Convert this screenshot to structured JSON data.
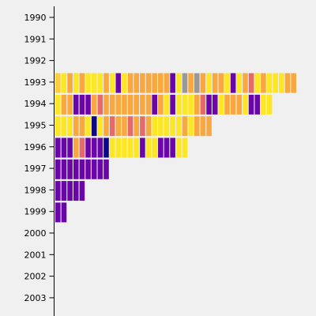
{
  "chart_data": {
    "type": "bar",
    "orientation": "horizontal",
    "description_style": "each year row is a sequence of colored cells",
    "y_categories": [
      "1990",
      "1991",
      "1992",
      "1993",
      "1994",
      "1995",
      "1996",
      "1997",
      "1998",
      "1999",
      "2000",
      "2001",
      "2002",
      "2003"
    ],
    "palette": {
      "yellow": "#fde725",
      "gold": "#fccf3a",
      "orange": "#f9a840",
      "salmon": "#e66a6a",
      "purple": "#6a05a8",
      "navy": "#0d0887",
      "gray": "#999999"
    },
    "rows": [
      {
        "year": "1990",
        "cells": []
      },
      {
        "year": "1991",
        "cells": []
      },
      {
        "year": "1992",
        "cells": [
          "gold",
          "yellow",
          "orange",
          "yellow",
          "orange",
          "yellow",
          "yellow",
          "yellow",
          "orange",
          "yellow",
          "purple",
          "yellow",
          "orange",
          "orange",
          "orange",
          "orange",
          "orange",
          "orange",
          "orange",
          "purple",
          "yellow",
          "gray",
          "orange",
          "gray",
          "orange",
          "yellow",
          "orange",
          "orange",
          "yellow",
          "purple",
          "yellow",
          "orange",
          "salmon",
          "yellow",
          "orange",
          "yellow",
          "yellow",
          "yellow",
          "orange",
          "orange"
        ]
      },
      {
        "year": "1993",
        "cells": [
          "yellow",
          "orange",
          "orange",
          "purple",
          "purple",
          "purple",
          "orange",
          "salmon",
          "orange",
          "orange",
          "orange",
          "orange",
          "orange",
          "orange",
          "orange",
          "orange",
          "purple",
          "orange",
          "yellow",
          "purple",
          "yellow",
          "yellow",
          "yellow",
          "orange",
          "salmon",
          "purple",
          "purple",
          "yellow",
          "orange",
          "orange",
          "orange",
          "yellow",
          "purple",
          "purple",
          "yellow",
          "yellow"
        ]
      },
      {
        "year": "1994",
        "cells": [
          "yellow",
          "yellow",
          "yellow",
          "orange",
          "orange",
          "yellow",
          "navy",
          "yellow",
          "orange",
          "salmon",
          "orange",
          "orange",
          "salmon",
          "orange",
          "salmon",
          "orange",
          "yellow",
          "yellow",
          "yellow",
          "yellow",
          "yellow",
          "orange",
          "yellow",
          "orange",
          "orange",
          "orange"
        ]
      },
      {
        "year": "1995",
        "cells": [
          "purple",
          "purple",
          "purple",
          "orange",
          "salmon",
          "purple",
          "purple",
          "purple",
          "navy",
          "yellow",
          "yellow",
          "yellow",
          "yellow",
          "yellow",
          "purple",
          "yellow",
          "yellow",
          "purple",
          "purple",
          "purple",
          "yellow",
          "yellow"
        ]
      },
      {
        "year": "1996",
        "cells": [
          "purple",
          "purple",
          "purple",
          "purple",
          "purple",
          "purple",
          "purple",
          "purple",
          "purple"
        ]
      },
      {
        "year": "1997",
        "cells": [
          "purple",
          "purple",
          "purple",
          "purple",
          "purple"
        ]
      },
      {
        "year": "1998",
        "cells": [
          "purple",
          "purple"
        ]
      },
      {
        "year": "1999",
        "cells": []
      },
      {
        "year": "2000",
        "cells": []
      },
      {
        "year": "2001",
        "cells": []
      },
      {
        "year": "2002",
        "cells": []
      },
      {
        "year": "2003",
        "cells": []
      }
    ],
    "title": "",
    "xlabel": "",
    "ylabel": ""
  }
}
